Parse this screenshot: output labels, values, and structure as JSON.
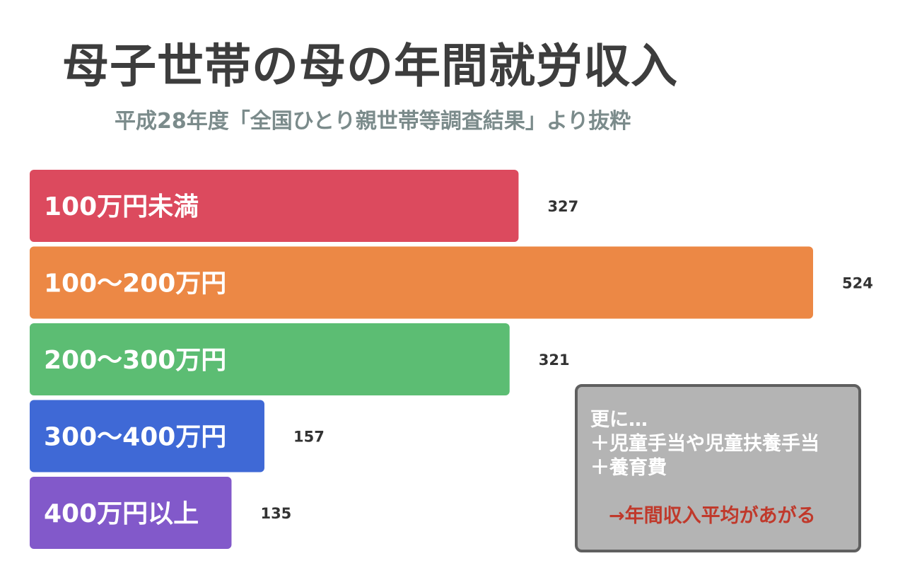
{
  "title": "母子世帯の母の年間就労収入",
  "subtitle": "平成28年度「全国ひとり親世帯等調査結果」より抜粋",
  "chart_data": {
    "type": "bar",
    "orientation": "horizontal",
    "categories": [
      "100万円未満",
      "100〜200万円",
      "200〜300万円",
      "300〜400万円",
      "400万円以上"
    ],
    "values": [
      327,
      524,
      321,
      157,
      135
    ],
    "colors": [
      "#dc4a5e",
      "#ec8845",
      "#5cbd73",
      "#3f69d6",
      "#8259ca"
    ],
    "data_labels": true,
    "grid": false,
    "legend": "none"
  },
  "note": {
    "lines": [
      "更に…",
      "＋児童手当や児童扶養手当",
      "＋養育費"
    ],
    "conclusion": "→年間収入平均があがる"
  }
}
